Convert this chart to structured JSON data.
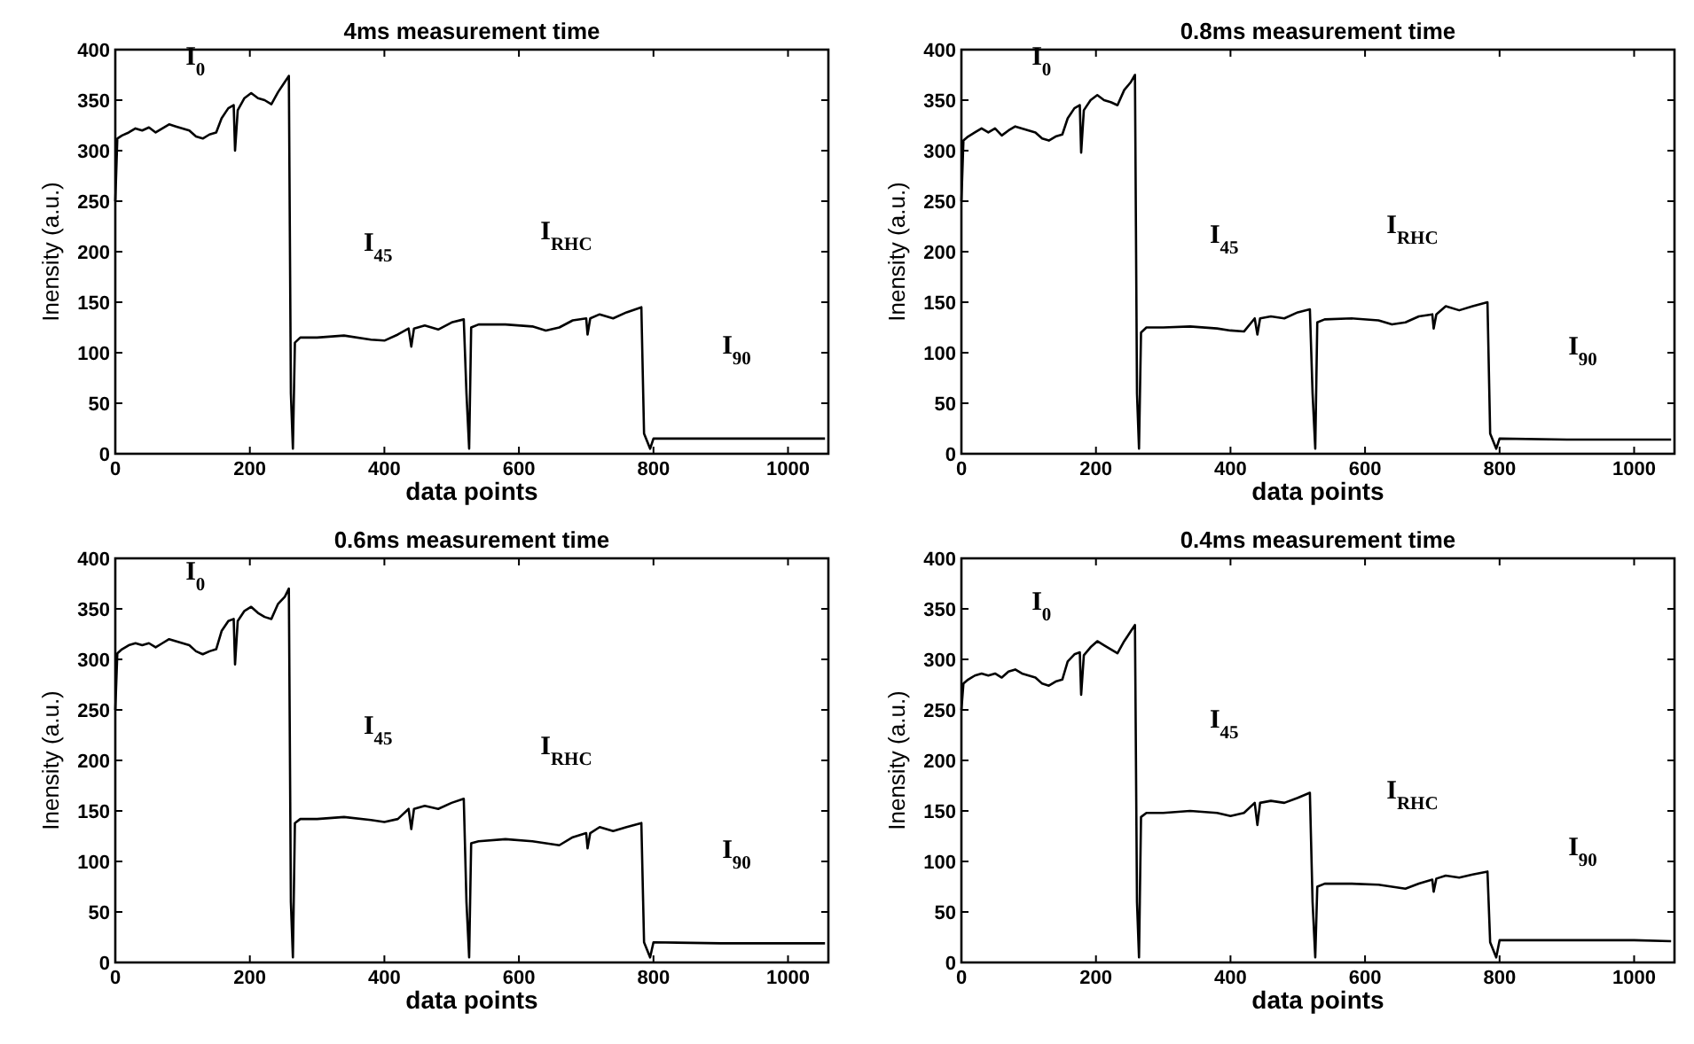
{
  "chart_data": [
    {
      "type": "line",
      "title": "4ms measurement time",
      "xlabel": "data points",
      "ylabel": "Inensity (a.u.)",
      "xlim": [
        0,
        1060
      ],
      "ylim": [
        0,
        400
      ],
      "xticks": [
        0,
        200,
        400,
        600,
        800,
        1000
      ],
      "yticks": [
        0,
        50,
        100,
        150,
        200,
        250,
        300,
        350,
        400
      ],
      "grid": false,
      "marker": "none",
      "line_style": "solid",
      "x": [
        0,
        3,
        10,
        20,
        30,
        40,
        50,
        60,
        70,
        80,
        90,
        100,
        110,
        120,
        130,
        140,
        150,
        158,
        168,
        176,
        178,
        182,
        192,
        202,
        212,
        222,
        232,
        242,
        252,
        258,
        261,
        264,
        267,
        275,
        300,
        340,
        380,
        400,
        420,
        436,
        440,
        444,
        460,
        480,
        500,
        518,
        522,
        526,
        529,
        540,
        580,
        620,
        640,
        660,
        680,
        700,
        702,
        706,
        720,
        740,
        760,
        782,
        786,
        795,
        800,
        900,
        1000,
        1055
      ],
      "series": [
        {
          "color": "#000000",
          "values": [
            250,
            312,
            315,
            318,
            322,
            320,
            323,
            318,
            322,
            326,
            324,
            322,
            320,
            314,
            312,
            316,
            318,
            332,
            342,
            345,
            300,
            340,
            352,
            357,
            352,
            350,
            346,
            358,
            368,
            374,
            60,
            5,
            110,
            115,
            115,
            117,
            113,
            112,
            118,
            124,
            106,
            124,
            127,
            123,
            130,
            133,
            60,
            5,
            125,
            128,
            128,
            126,
            122,
            125,
            132,
            134,
            118,
            134,
            138,
            134,
            140,
            145,
            20,
            5,
            15,
            15,
            15,
            15
          ]
        }
      ],
      "annotations": [
        "I$_{0}$",
        "I$_{45}$",
        "I$_{RHC}$",
        "I$_{90}$"
      ]
    },
    {
      "type": "line",
      "title": "0.8ms measurement time",
      "xlabel": "data points",
      "ylabel": "Inensity (a.u.)",
      "xlim": [
        0,
        1060
      ],
      "ylim": [
        0,
        400
      ],
      "xticks": [
        0,
        200,
        400,
        600,
        800,
        1000
      ],
      "yticks": [
        0,
        50,
        100,
        150,
        200,
        250,
        300,
        350,
        400
      ],
      "grid": false,
      "marker": "none",
      "line_style": "solid",
      "x": [
        0,
        3,
        10,
        20,
        30,
        40,
        50,
        60,
        70,
        80,
        90,
        100,
        110,
        120,
        130,
        140,
        150,
        158,
        168,
        176,
        178,
        182,
        192,
        202,
        212,
        222,
        232,
        242,
        252,
        258,
        261,
        264,
        267,
        275,
        300,
        340,
        380,
        400,
        420,
        436,
        440,
        444,
        460,
        480,
        500,
        518,
        522,
        526,
        529,
        540,
        580,
        620,
        640,
        660,
        680,
        700,
        702,
        706,
        720,
        740,
        760,
        782,
        786,
        795,
        800,
        900,
        1000,
        1055
      ],
      "series": [
        {
          "color": "#000000",
          "values": [
            250,
            310,
            314,
            318,
            322,
            318,
            322,
            315,
            320,
            324,
            322,
            320,
            318,
            312,
            310,
            314,
            316,
            332,
            342,
            345,
            298,
            340,
            350,
            355,
            350,
            348,
            345,
            360,
            368,
            375,
            60,
            5,
            120,
            125,
            125,
            126,
            124,
            122,
            121,
            134,
            118,
            134,
            136,
            134,
            140,
            143,
            60,
            5,
            130,
            133,
            134,
            132,
            128,
            130,
            136,
            138,
            124,
            138,
            146,
            142,
            146,
            150,
            20,
            5,
            15,
            14,
            14,
            14
          ]
        }
      ],
      "annotations": [
        "I$_{0}$",
        "I$_{45}$",
        "I$_{RHC}$",
        "I$_{90}$"
      ]
    },
    {
      "type": "line",
      "title": "0.6ms measurement time",
      "xlabel": "data points",
      "ylabel": "Inensity (a.u.)",
      "xlim": [
        0,
        1060
      ],
      "ylim": [
        0,
        400
      ],
      "xticks": [
        0,
        200,
        400,
        600,
        800,
        1000
      ],
      "yticks": [
        0,
        50,
        100,
        150,
        200,
        250,
        300,
        350,
        400
      ],
      "grid": false,
      "marker": "none",
      "line_style": "solid",
      "x": [
        0,
        3,
        10,
        20,
        30,
        40,
        50,
        60,
        70,
        80,
        90,
        100,
        110,
        120,
        130,
        140,
        150,
        158,
        168,
        176,
        178,
        182,
        192,
        202,
        212,
        222,
        232,
        242,
        252,
        258,
        261,
        264,
        267,
        275,
        300,
        340,
        380,
        400,
        420,
        436,
        440,
        444,
        460,
        480,
        500,
        518,
        522,
        526,
        529,
        540,
        580,
        620,
        640,
        660,
        680,
        700,
        702,
        706,
        720,
        740,
        760,
        782,
        786,
        795,
        800,
        900,
        1000,
        1055
      ],
      "series": [
        {
          "color": "#000000",
          "values": [
            250,
            306,
            310,
            314,
            316,
            314,
            316,
            312,
            316,
            320,
            318,
            316,
            314,
            308,
            305,
            308,
            310,
            328,
            338,
            340,
            295,
            338,
            348,
            352,
            346,
            342,
            340,
            355,
            362,
            370,
            60,
            5,
            138,
            142,
            142,
            144,
            141,
            139,
            142,
            152,
            132,
            152,
            155,
            152,
            158,
            162,
            60,
            5,
            118,
            120,
            122,
            120,
            118,
            116,
            124,
            128,
            113,
            128,
            134,
            130,
            134,
            138,
            20,
            5,
            20,
            19,
            19,
            19
          ]
        }
      ],
      "annotations": [
        "I$_{0}$",
        "I$_{45}$",
        "I$_{RHC}$",
        "I$_{90}$"
      ]
    },
    {
      "type": "line",
      "title": "0.4ms measurement time",
      "xlabel": "data points",
      "ylabel": "Inensity (a.u.)",
      "xlim": [
        0,
        1060
      ],
      "ylim": [
        0,
        400
      ],
      "xticks": [
        0,
        200,
        400,
        600,
        800,
        1000
      ],
      "yticks": [
        0,
        50,
        100,
        150,
        200,
        250,
        300,
        350,
        400
      ],
      "grid": false,
      "marker": "none",
      "line_style": "solid",
      "x": [
        0,
        3,
        10,
        20,
        30,
        40,
        50,
        60,
        70,
        80,
        90,
        100,
        110,
        120,
        130,
        140,
        150,
        158,
        168,
        176,
        178,
        182,
        192,
        202,
        212,
        222,
        232,
        242,
        252,
        258,
        261,
        264,
        267,
        275,
        300,
        340,
        380,
        400,
        420,
        436,
        440,
        444,
        460,
        480,
        500,
        518,
        522,
        526,
        529,
        540,
        580,
        620,
        640,
        660,
        680,
        700,
        702,
        706,
        720,
        740,
        760,
        782,
        786,
        795,
        800,
        900,
        1000,
        1055
      ],
      "series": [
        {
          "color": "#000000",
          "values": [
            250,
            276,
            280,
            284,
            286,
            284,
            286,
            282,
            288,
            290,
            286,
            284,
            282,
            276,
            274,
            278,
            280,
            298,
            305,
            307,
            265,
            304,
            312,
            318,
            314,
            310,
            306,
            318,
            328,
            334,
            60,
            5,
            144,
            148,
            148,
            150,
            148,
            145,
            148,
            158,
            136,
            158,
            160,
            158,
            163,
            168,
            60,
            5,
            75,
            78,
            78,
            77,
            75,
            73,
            78,
            82,
            70,
            83,
            86,
            84,
            87,
            90,
            20,
            5,
            22,
            22,
            22,
            21
          ]
        }
      ],
      "annotations": [
        "I$_{0}$",
        "I$_{45}$",
        "I$_{RHC}$",
        "I$_{90}$"
      ]
    }
  ]
}
